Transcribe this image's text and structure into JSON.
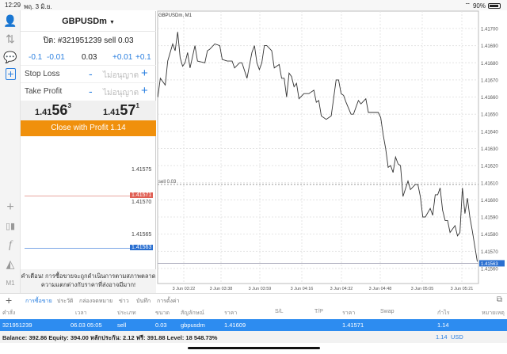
{
  "status": {
    "time": "12:29",
    "date": "พฤ. 3 มิ.ย.",
    "battery": "90%"
  },
  "sidebar": {
    "icons": [
      "account-icon",
      "trade-icon",
      "chat-icon",
      "new-order-icon",
      "crosshair-icon",
      "indicators-icon",
      "function-icon",
      "objects-icon"
    ],
    "timeframe": "M1"
  },
  "panel": {
    "symbol": "GBPUSDm",
    "order_line": "ปิด: #321951239 sell 0.03",
    "lots": {
      "m01": "-0.1",
      "m001": "-0.01",
      "value": "0.03",
      "p001": "+0.01",
      "p01": "+0.1"
    },
    "stop_loss": {
      "label": "Stop Loss",
      "value": "ไม่อนุญาต",
      "minus": "-",
      "plus": "+"
    },
    "take_profit": {
      "label": "Take Profit",
      "value": "ไม่อนุญาต",
      "minus": "-",
      "plus": "+"
    },
    "bid": {
      "pre": "1.41",
      "big": "56",
      "sup": "3"
    },
    "ask": {
      "pre": "1.41",
      "big": "57",
      "sup": "1"
    },
    "close_button": "Close with Profit 1.14",
    "mini_ticks": [
      "1.41575",
      "1.41570",
      "1.41565"
    ],
    "ask_line": "1.41571",
    "bid_line": "1.41563",
    "warning_1": "คำเตือน! การซื้อขายจะถูกดำเนินการตามสภาพตลาด",
    "warning_2": "ความแตกต่างกับราคาที่ส่งอาจมีมาก!"
  },
  "colors": {
    "accent": "#2d8cf0",
    "close_button": "#f0900c",
    "ask_line": "#e06055",
    "bid_line": "#2a6fd0"
  },
  "chart_data": {
    "type": "line",
    "title": "GBPUSDm, M1",
    "x_ticks": [
      "3 Jun 03:22",
      "3 Jun 03:38",
      "3 Jun 03:59",
      "3 Jun 04:16",
      "3 Jun 04:32",
      "3 Jun 04:48",
      "3 Jun 05:05",
      "3 Jun 05:21"
    ],
    "y_ticks": [
      "1.41700",
      "1.41690",
      "1.41680",
      "1.41670",
      "1.41660",
      "1.41650",
      "1.41640",
      "1.41630",
      "1.41620",
      "1.41610",
      "1.41600",
      "1.41590",
      "1.41580",
      "1.41570",
      "1.41560"
    ],
    "ylim": [
      1.4156,
      1.417
    ],
    "grid": true,
    "order_line": {
      "label": "sell 0.03",
      "price": 1.41609
    },
    "current_price": "1.41563",
    "points": [
      [
        "03:16",
        1.4166
      ],
      [
        "03:17",
        1.41671
      ],
      [
        "03:18",
        1.41669
      ],
      [
        "03:19",
        1.41667
      ],
      [
        "03:20",
        1.41681
      ],
      [
        "03:22",
        1.41691
      ],
      [
        "03:23",
        1.41687
      ],
      [
        "03:24",
        1.41698
      ],
      [
        "03:25",
        1.41683
      ],
      [
        "03:26",
        1.41678
      ],
      [
        "03:27",
        1.4168
      ],
      [
        "03:28",
        1.41686
      ],
      [
        "03:29",
        1.41677
      ],
      [
        "03:31",
        1.4169
      ],
      [
        "03:32",
        1.41681
      ],
      [
        "03:35",
        1.4168
      ],
      [
        "03:36",
        1.41687
      ],
      [
        "03:37",
        1.41688
      ],
      [
        "03:39",
        1.41691
      ],
      [
        "03:41",
        1.4169
      ],
      [
        "03:42",
        1.41682
      ],
      [
        "03:44",
        1.41681
      ],
      [
        "03:46",
        1.41681
      ],
      [
        "03:47",
        1.41677
      ],
      [
        "03:49",
        1.4168
      ],
      [
        "03:50",
        1.4168
      ],
      [
        "03:52",
        1.41671
      ],
      [
        "03:54",
        1.41686
      ],
      [
        "03:55",
        1.4169
      ],
      [
        "03:56",
        1.4168
      ],
      [
        "03:57",
        1.41676
      ],
      [
        "03:58",
        1.4168
      ],
      [
        "03:59",
        1.4169
      ],
      [
        "04:00",
        1.4169
      ],
      [
        "04:02",
        1.41687
      ],
      [
        "04:03",
        1.41677
      ],
      [
        "04:05",
        1.41679
      ],
      [
        "04:06",
        1.41671
      ],
      [
        "04:07",
        1.41671
      ],
      [
        "04:08",
        1.4166
      ],
      [
        "04:09",
        1.41674
      ],
      [
        "04:10",
        1.41672
      ],
      [
        "04:11",
        1.41666
      ],
      [
        "04:12",
        1.41668
      ],
      [
        "04:13",
        1.41659
      ],
      [
        "04:15",
        1.41662
      ],
      [
        "04:17",
        1.41662
      ],
      [
        "04:19",
        1.41664
      ],
      [
        "04:20",
        1.41657
      ],
      [
        "04:21",
        1.41658
      ],
      [
        "04:22",
        1.41649
      ],
      [
        "04:24",
        1.41647
      ],
      [
        "04:26",
        1.41649
      ],
      [
        "04:28",
        1.4167
      ],
      [
        "04:29",
        1.4167
      ],
      [
        "04:30",
        1.41662
      ],
      [
        "04:31",
        1.41661
      ],
      [
        "04:32",
        1.41657
      ],
      [
        "04:34",
        1.4165
      ],
      [
        "04:35",
        1.4165
      ],
      [
        "04:37",
        1.41658
      ],
      [
        "04:38",
        1.41656
      ],
      [
        "04:40",
        1.41659
      ],
      [
        "04:41",
        1.41651
      ],
      [
        "04:43",
        1.41651
      ],
      [
        "04:45",
        1.41651
      ],
      [
        "04:46",
        1.41648
      ],
      [
        "04:47",
        1.41638
      ],
      [
        "04:48",
        1.4163
      ],
      [
        "04:49",
        1.41619
      ],
      [
        "04:50",
        1.4162
      ],
      [
        "04:51",
        1.41616
      ],
      [
        "04:52",
        1.41625
      ],
      [
        "04:53",
        1.41621
      ],
      [
        "04:54",
        1.4162
      ],
      [
        "04:55",
        1.41602
      ],
      [
        "04:57",
        1.41611
      ],
      [
        "04:58",
        1.41606
      ],
      [
        "05:00",
        1.41609
      ],
      [
        "05:01",
        1.41609
      ],
      [
        "05:02",
        1.41602
      ],
      [
        "05:03",
        1.4159
      ],
      [
        "05:04",
        1.4159
      ],
      [
        "05:06",
        1.41595
      ],
      [
        "05:07",
        1.41591
      ],
      [
        "05:08",
        1.41603
      ],
      [
        "05:09",
        1.41603
      ],
      [
        "05:10",
        1.41607
      ],
      [
        "05:11",
        1.41594
      ],
      [
        "05:12",
        1.41588
      ],
      [
        "05:13",
        1.41588
      ],
      [
        "05:14",
        1.41581
      ],
      [
        "05:16",
        1.41585
      ],
      [
        "05:17",
        1.41579
      ],
      [
        "05:18",
        1.41581
      ],
      [
        "05:19",
        1.41607
      ],
      [
        "05:20",
        1.41592
      ],
      [
        "05:21",
        1.41601
      ],
      [
        "05:22",
        1.4159
      ],
      [
        "05:23",
        1.41582
      ],
      [
        "05:25",
        1.41564
      ]
    ]
  },
  "tabs": {
    "items": [
      "การซื้อขาย",
      "ประวัติ",
      "กล่องจดหมาย",
      "ข่าว",
      "บันทึก",
      "การตั้งค่า"
    ],
    "active": 0
  },
  "table": {
    "headers": [
      "คำสั่ง",
      "เวลา",
      "ประเภท",
      "ขนาด",
      "สัญลักษณ์",
      "ราคา",
      "S/L",
      "T/P",
      "ราคา",
      "Swap",
      "กำไร",
      "หมายเหตุ"
    ],
    "row": [
      "321951239",
      "06.03 05:05",
      "sell",
      "0.03",
      "gbpusdm",
      "1.41609",
      "",
      "",
      "1.41571",
      "",
      "1.14",
      ""
    ]
  },
  "balance": {
    "text": "Balance: 392.86 Equity: 394.00 หลักประกัน: 2.12 ฟรี: 391.88 Level: 18 548.73%",
    "profit": "1.14",
    "currency": "USD"
  }
}
